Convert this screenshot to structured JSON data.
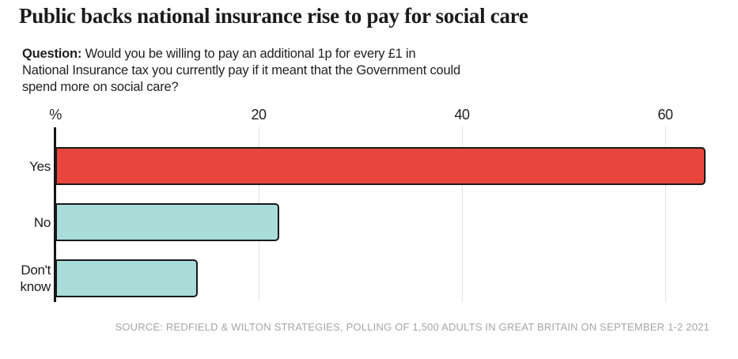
{
  "page": {
    "title": "Public backs national insurance rise to pay for social care",
    "question": {
      "label": "Question:",
      "lines": [
        "Would you be willing to pay an additional 1p for every £1 in",
        "National Insurance tax you currently pay if it meant that the Government could",
        "spend more on social care?"
      ]
    },
    "source": "SOURCE: REDFIELD & WILTON STRATEGIES, POLLING OF 1,500 ADULTS IN GREAT BRITAIN ON SEPTEMBER 1-2 2021"
  },
  "chart_data": {
    "type": "bar",
    "orientation": "horizontal",
    "unit_label": "%",
    "categories": [
      "Yes",
      "No",
      "Don't know"
    ],
    "values": [
      64,
      22,
      14
    ],
    "x_ticks": [
      20,
      40,
      60
    ],
    "xlim": [
      0,
      67
    ],
    "grid": "vertical-light-gray-at-ticks",
    "legend": "none",
    "colors": {
      "bar_fills": [
        "#e8463d",
        "#aadcda",
        "#aadcda"
      ],
      "bar_border": "#1a1a1a",
      "axis_line": "#141414",
      "gridline": "#e2e2e2",
      "tick_text": "#1f1f1f",
      "source_text": "#a6a6a6"
    }
  }
}
